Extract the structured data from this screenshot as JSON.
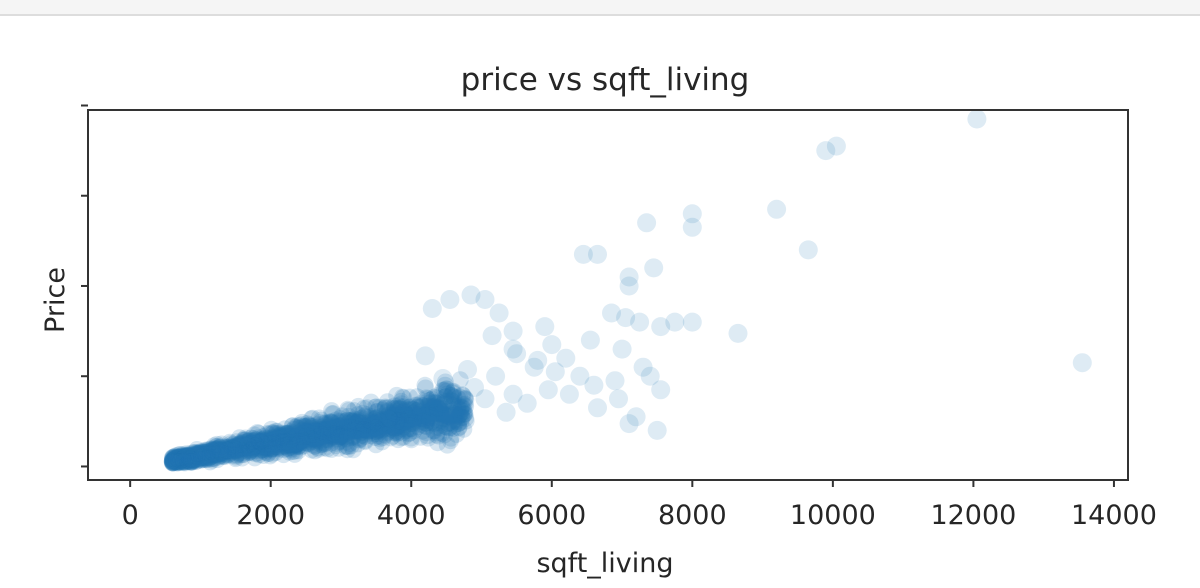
{
  "chart_data": {
    "type": "scatter",
    "title": "price vs sqft_living",
    "xlabel": "sqft_living",
    "ylabel": "Price",
    "xlim": [
      -600,
      14200
    ],
    "ylim": [
      -300000,
      7900000
    ],
    "xticks": [
      0,
      2000,
      4000,
      6000,
      8000,
      10000,
      12000,
      14000
    ],
    "xtick_labels": [
      "0",
      "2000",
      "4000",
      "6000",
      "8000",
      "10000",
      "12000",
      "14000"
    ],
    "yticks": [
      0,
      2000000,
      4000000,
      6000000,
      8000000
    ],
    "ytick_labels": [
      "",
      "",
      "",
      "",
      ""
    ],
    "grid": false,
    "legend": "none",
    "marker_color": "#1f77b4",
    "marker_alpha": 0.15,
    "series": [
      {
        "x": [
          12050,
          10050,
          9900,
          9200,
          8000,
          8000,
          7350,
          9650,
          6650,
          6450,
          7450,
          7100,
          7100,
          13550,
          8650,
          8000,
          7750,
          7550,
          7250,
          7050,
          6850,
          6550,
          5900,
          5450,
          5250,
          5050,
          4850,
          4550,
          4300,
          5150,
          6000,
          5500,
          6200,
          6400,
          6250,
          6900,
          7000,
          7300,
          7400,
          7550,
          7200,
          6600,
          5950,
          5450,
          5200,
          5750,
          6050,
          5650,
          5350,
          7500,
          7100,
          6650,
          6950,
          5800,
          5450,
          4800,
          5050,
          4900,
          4450,
          4200
        ],
        "y": [
          7700000,
          7100000,
          7000000,
          5700000,
          5600000,
          5300000,
          5400000,
          4800000,
          4700000,
          4700000,
          4400000,
          4200000,
          4000000,
          2300000,
          2950000,
          3200000,
          3200000,
          3100000,
          3200000,
          3300000,
          3400000,
          2800000,
          3100000,
          3000000,
          3400000,
          3700000,
          3800000,
          3700000,
          3500000,
          2900000,
          2700000,
          2500000,
          2400000,
          2000000,
          1600000,
          1900000,
          2600000,
          2200000,
          2000000,
          1700000,
          1100000,
          1800000,
          1700000,
          1600000,
          2000000,
          2200000,
          2100000,
          1400000,
          1200000,
          800000,
          950000,
          1300000,
          1500000,
          2350000,
          2600000,
          2150000,
          1500000,
          1750000,
          1950000,
          2450000
        ]
      }
    ]
  }
}
